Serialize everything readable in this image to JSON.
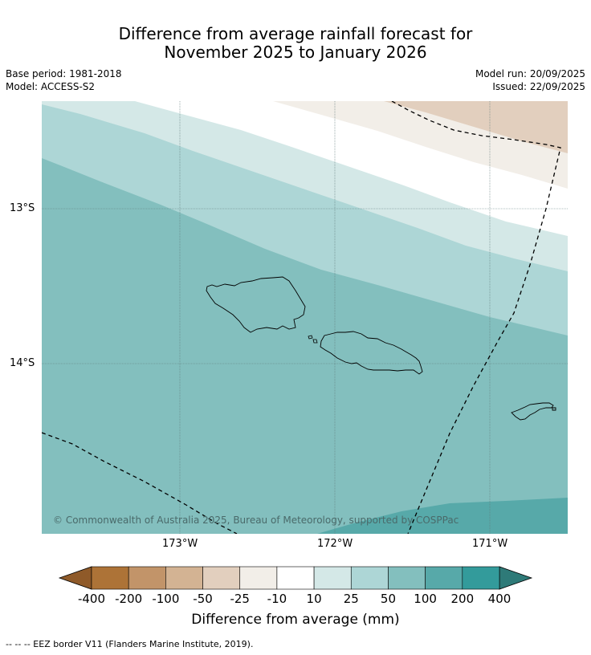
{
  "title": {
    "line1": "Difference from average rainfall forecast for",
    "line2": "November 2025 to January 2026"
  },
  "meta": {
    "base_period": "Base period: 1981-2018",
    "model": "Model: ACCESS-S2",
    "model_run": "Model run: 20/09/2025",
    "issued": "Issued: 22/09/2025"
  },
  "map": {
    "lat_labels": [
      "13°S",
      "14°S"
    ],
    "lon_labels": [
      "173°W",
      "172°W",
      "171°W"
    ],
    "copyright": "© Commonwealth of Australia 2025, Bureau of Meteorology, supported by COSPPac",
    "features": [
      "Savai'i",
      "Upolu",
      "Tutuila",
      "EEZ border"
    ]
  },
  "colorbar": {
    "labels": [
      "-400",
      "-200",
      "-100",
      "-50",
      "-25",
      "-10",
      "10",
      "25",
      "50",
      "100",
      "200",
      "400"
    ],
    "colors": [
      "#ad7337",
      "#c29469",
      "#d3b393",
      "#e2cfbe",
      "#f2eee8",
      "#ffffff",
      "#d4e8e7",
      "#add6d6",
      "#83bfbe",
      "#57a9a9",
      "#339b9b"
    ],
    "under_color": "#8f5a29",
    "over_color": "#2e7a78",
    "title": "Difference from average (mm)"
  },
  "footnote": "-- -- -- EEZ border V11 (Flanders Marine Institute, 2019)."
}
